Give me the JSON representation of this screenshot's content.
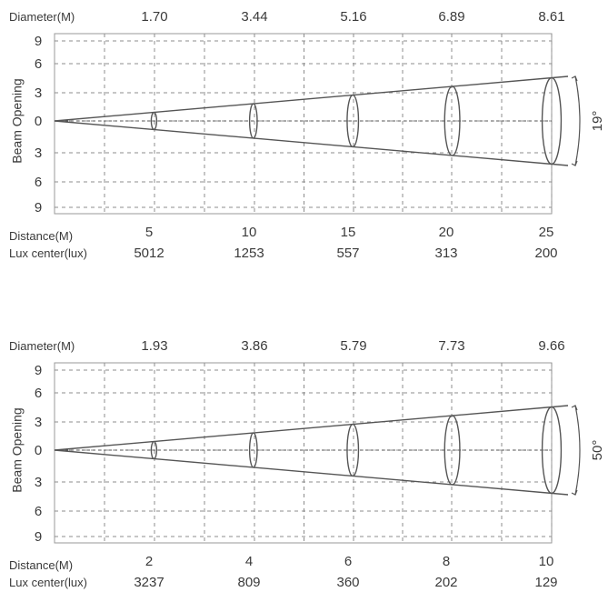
{
  "chart_data": [
    {
      "type": "beam_diagram",
      "diameter_label": "Diameter(M)",
      "ylabel": "Beam Opening",
      "yticks": [
        "9",
        "6",
        "3",
        "0",
        "3",
        "6",
        "9"
      ],
      "distance_label": "Distance(M)",
      "lux_label": "Lux center(lux)",
      "angle_label": "19°",
      "diameters": [
        "1.70",
        "3.44",
        "5.16",
        "6.89",
        "8.61"
      ],
      "distances": [
        "5",
        "10",
        "15",
        "20",
        "25"
      ],
      "lux": [
        "5012",
        "1253",
        "557",
        "313",
        "200"
      ],
      "diameter_values": [
        1.7,
        3.44,
        5.16,
        6.89,
        8.61
      ],
      "distance_values": [
        5,
        10,
        15,
        20,
        25
      ]
    },
    {
      "type": "beam_diagram",
      "diameter_label": "Diameter(M)",
      "ylabel": "Beam Opening",
      "yticks": [
        "9",
        "6",
        "3",
        "0",
        "3",
        "6",
        "9"
      ],
      "distance_label": "Distance(M)",
      "lux_label": "Lux center(lux)",
      "angle_label": "50°",
      "diameters": [
        "1.93",
        "3.86",
        "5.79",
        "7.73",
        "9.66"
      ],
      "distances": [
        "2",
        "4",
        "6",
        "8",
        "10"
      ],
      "lux": [
        "3237",
        "809",
        "360",
        "202",
        "129"
      ],
      "diameter_values": [
        1.93,
        3.86,
        5.79,
        7.73,
        9.66
      ],
      "distance_values": [
        2,
        4,
        6,
        8,
        10
      ]
    }
  ]
}
